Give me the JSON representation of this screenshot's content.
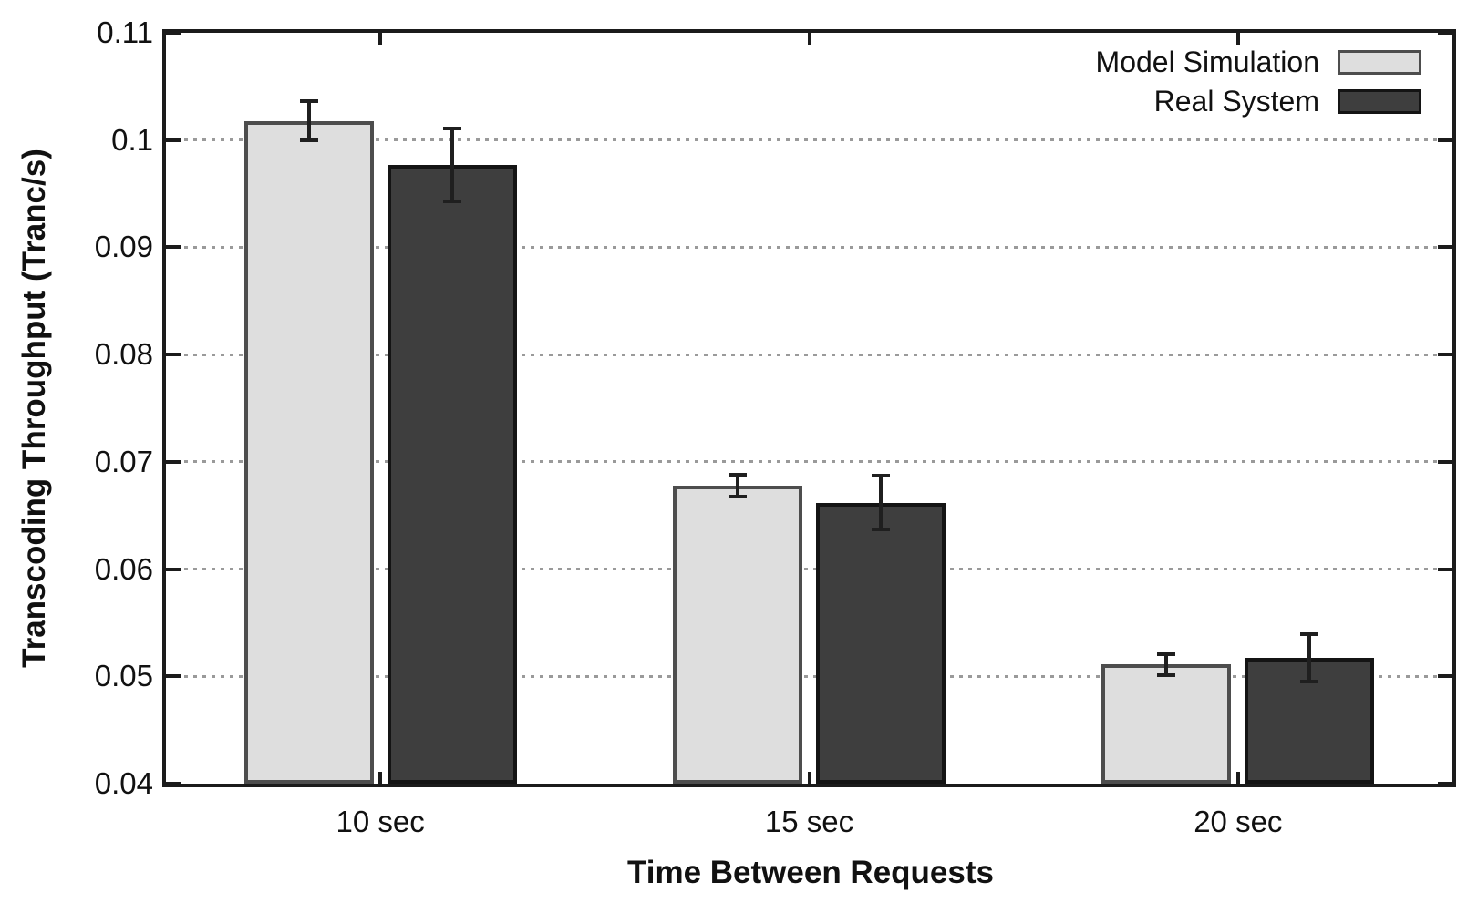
{
  "chart_data": {
    "type": "bar",
    "title": "",
    "xlabel": "Time Between Requests",
    "ylabel": "Transcoding Throughput (Tranc/s)",
    "categories": [
      "10 sec",
      "15 sec",
      "20 sec"
    ],
    "series": [
      {
        "name": "Model Simulation",
        "fill": "#dedede",
        "border": "#4d4d4d",
        "values": [
          0.1018,
          0.0678,
          0.0511
        ],
        "errors": [
          0.0018,
          0.001,
          0.001
        ]
      },
      {
        "name": "Real System",
        "fill": "#3e3e3e",
        "border": "#141414",
        "values": [
          0.0977,
          0.0662,
          0.0517
        ],
        "errors": [
          0.0034,
          0.0025,
          0.0022
        ]
      }
    ],
    "ylim": [
      0.04,
      0.11
    ],
    "ytick_step": 0.01,
    "yticks": [
      "0.04",
      "0.05",
      "0.06",
      "0.07",
      "0.08",
      "0.09",
      "0.1",
      "0.11"
    ],
    "grid": "horizontal-dotted",
    "legend_position": "top-right-inside",
    "colors": {
      "axis": "#1b1b1b",
      "grid": "#9a9a9a",
      "error_bar": "#1f1f1f",
      "background": "#ffffff",
      "text": "#111111"
    }
  }
}
